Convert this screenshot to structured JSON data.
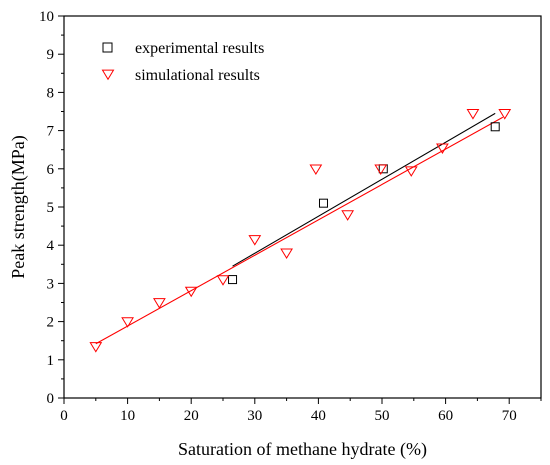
{
  "chart_data": {
    "type": "scatter",
    "xlabel": "Saturation of methane hydrate (%)",
    "ylabel": "Peak strength(MPa)",
    "xlim": [
      0,
      75
    ],
    "ylim": [
      0,
      10
    ],
    "xticks": [
      0,
      10,
      20,
      30,
      40,
      50,
      60,
      70
    ],
    "yticks": [
      0,
      1,
      2,
      3,
      4,
      5,
      6,
      7,
      8,
      9,
      10
    ],
    "grid": false,
    "legend": "top-left",
    "series": [
      {
        "name": "experimental results",
        "marker": "square",
        "color": "#000000",
        "points": [
          [
            26.5,
            3.1
          ],
          [
            40.8,
            5.1
          ],
          [
            50.2,
            6.0
          ],
          [
            67.8,
            7.1
          ]
        ],
        "fit": {
          "x": [
            26.5,
            67.8
          ],
          "y": [
            3.45,
            7.45
          ],
          "color": "#000000"
        }
      },
      {
        "name": "simulational results",
        "marker": "triangle-down",
        "color": "#ff0000",
        "points": [
          [
            5,
            1.35
          ],
          [
            10,
            2.0
          ],
          [
            15,
            2.5
          ],
          [
            20,
            2.8
          ],
          [
            25,
            3.1
          ],
          [
            30,
            4.15
          ],
          [
            35,
            3.8
          ],
          [
            39.6,
            6.0
          ],
          [
            44.6,
            4.8
          ],
          [
            49.8,
            6.0
          ],
          [
            54.6,
            5.95
          ],
          [
            59.5,
            6.55
          ],
          [
            64.3,
            7.45
          ],
          [
            69.3,
            7.45
          ]
        ],
        "fit": {
          "x": [
            5,
            69
          ],
          "y": [
            1.42,
            7.35
          ],
          "color": "#ff0000"
        }
      }
    ]
  }
}
